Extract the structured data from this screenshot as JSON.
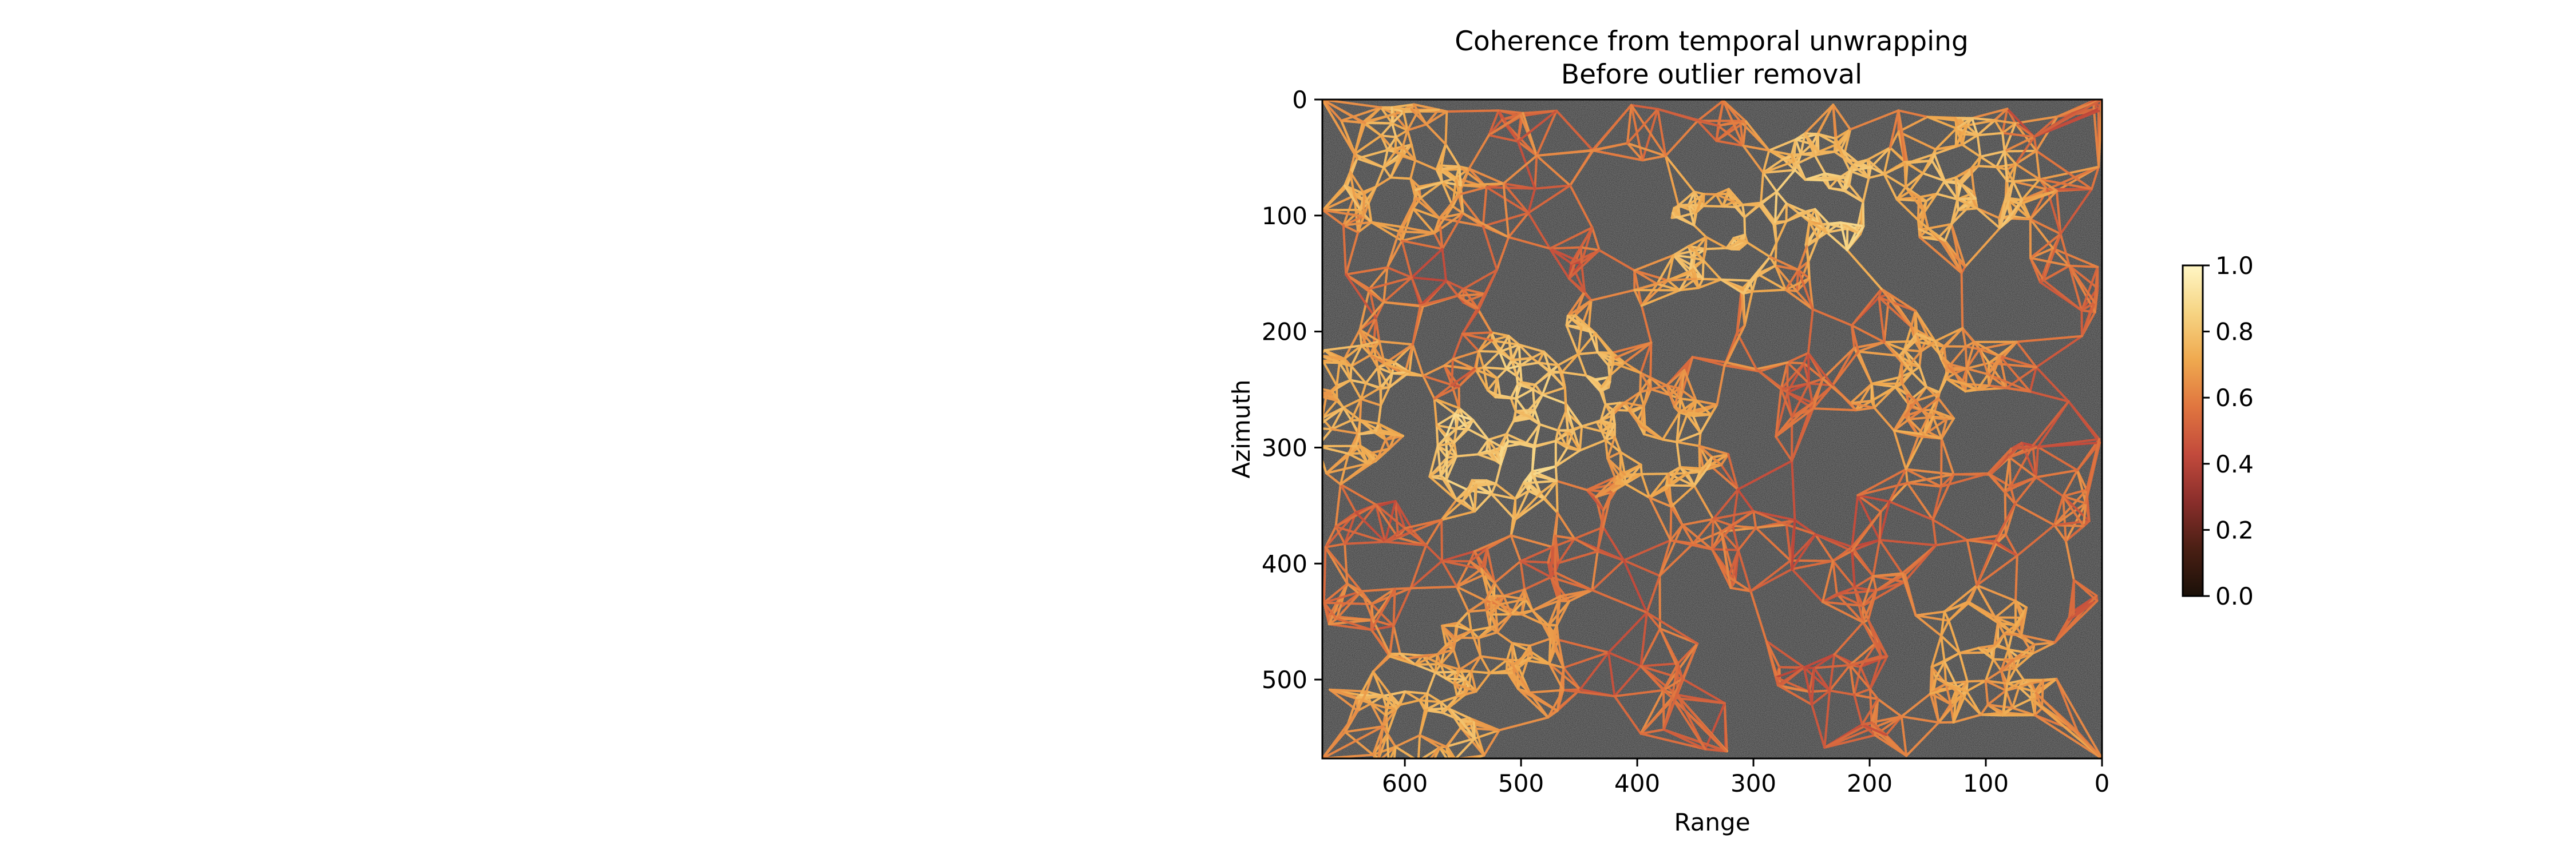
{
  "chart_data": {
    "type": "network",
    "title": "Coherence from temporal unwrapping",
    "subtitle": "Before outlier removal",
    "xlabel": "Range",
    "ylabel": "Azimuth",
    "xlim": [
      671,
      0
    ],
    "ylim": [
      568,
      0
    ],
    "x_ticks": [
      600,
      500,
      400,
      300,
      200,
      100,
      0
    ],
    "y_ticks": [
      0,
      100,
      200,
      300,
      400,
      500
    ],
    "x_inverted": true,
    "y_inverted": true,
    "background": "grayscale SAR amplitude image",
    "colorbar": {
      "ticks": [
        0.0,
        0.2,
        0.4,
        0.6,
        0.8,
        1.0
      ],
      "tick_labels": [
        "0.0",
        "0.2",
        "0.4",
        "0.6",
        "0.8",
        "1.0"
      ],
      "range": [
        0,
        1
      ],
      "colormap_stops": [
        "#1a1008",
        "#4a1f14",
        "#8a2e2b",
        "#c24a3c",
        "#e0753f",
        "#efa94f",
        "#f6d483",
        "#fff6c4"
      ]
    },
    "clusters": [
      {
        "range": 520,
        "azimuth": 310,
        "coherence": 0.9
      },
      {
        "range": 470,
        "azimuth": 240,
        "coherence": 0.88
      },
      {
        "range": 330,
        "azimuth": 130,
        "coherence": 0.85
      },
      {
        "range": 240,
        "azimuth": 80,
        "coherence": 0.88
      },
      {
        "range": 120,
        "azimuth": 70,
        "coherence": 0.85
      },
      {
        "range": 600,
        "azimuth": 60,
        "coherence": 0.82
      },
      {
        "range": 640,
        "azimuth": 260,
        "coherence": 0.82
      },
      {
        "range": 380,
        "azimuth": 300,
        "coherence": 0.8
      },
      {
        "range": 590,
        "azimuth": 530,
        "coherence": 0.82
      },
      {
        "range": 100,
        "azimuth": 480,
        "coherence": 0.8
      },
      {
        "range": 520,
        "azimuth": 470,
        "coherence": 0.78
      },
      {
        "range": 150,
        "azimuth": 240,
        "coherence": 0.78
      }
    ]
  }
}
